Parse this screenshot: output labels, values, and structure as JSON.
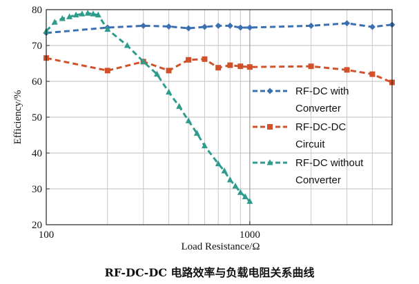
{
  "chart_data": {
    "type": "line",
    "title": "",
    "caption": "RF-DC-DC 电路效率与负载电阻关系曲线",
    "xlabel": "Load Resistance/Ω",
    "ylabel": "Efficiency/%",
    "xscale": "log",
    "xlim": [
      100,
      5000
    ],
    "ylim": [
      20,
      80
    ],
    "x_ticks": [
      100,
      1000
    ],
    "y_ticks": [
      20,
      30,
      40,
      50,
      60,
      70,
      80
    ],
    "grid": true,
    "legend_position": "center-right",
    "series": [
      {
        "name": "RF-DC with Converter",
        "legend_lines": [
          "RF-DC  with",
          "Converter"
        ],
        "color": "#3a6fb0",
        "marker": "diamond",
        "x": [
          100,
          200,
          300,
          400,
          500,
          600,
          700,
          800,
          900,
          1000,
          2000,
          3000,
          4000,
          5000
        ],
        "y": [
          73.5,
          75.0,
          75.5,
          75.3,
          74.8,
          75.2,
          75.5,
          75.5,
          75.0,
          75.0,
          75.5,
          76.2,
          75.2,
          75.8
        ]
      },
      {
        "name": "RF-DC-DC Circuit",
        "legend_lines": [
          "RF-DC-DC",
          "Circuit"
        ],
        "color": "#d0512a",
        "marker": "square",
        "x": [
          100,
          200,
          300,
          400,
          500,
          600,
          700,
          800,
          900,
          1000,
          2000,
          3000,
          4000,
          5000
        ],
        "y": [
          66.5,
          63.0,
          65.5,
          63.0,
          66.0,
          66.2,
          63.8,
          64.5,
          64.2,
          64.0,
          64.2,
          63.2,
          62.0,
          59.7
        ]
      },
      {
        "name": "RF-DC without Converter",
        "legend_lines": [
          "RF-DC  without",
          "Converter"
        ],
        "color": "#2e9c8c",
        "marker": "triangle",
        "x": [
          100,
          110,
          120,
          130,
          140,
          150,
          160,
          170,
          180,
          200,
          250,
          300,
          350,
          400,
          450,
          500,
          550,
          600,
          700,
          750,
          800,
          850,
          900,
          950,
          1000
        ],
        "y": [
          74.0,
          76.5,
          77.5,
          78.0,
          78.5,
          78.8,
          79.0,
          78.8,
          78.5,
          74.5,
          70.0,
          65.5,
          62.0,
          57.0,
          53.0,
          49.0,
          45.5,
          42.0,
          37.0,
          35.0,
          32.5,
          30.8,
          29.0,
          27.8,
          26.5
        ]
      }
    ]
  }
}
